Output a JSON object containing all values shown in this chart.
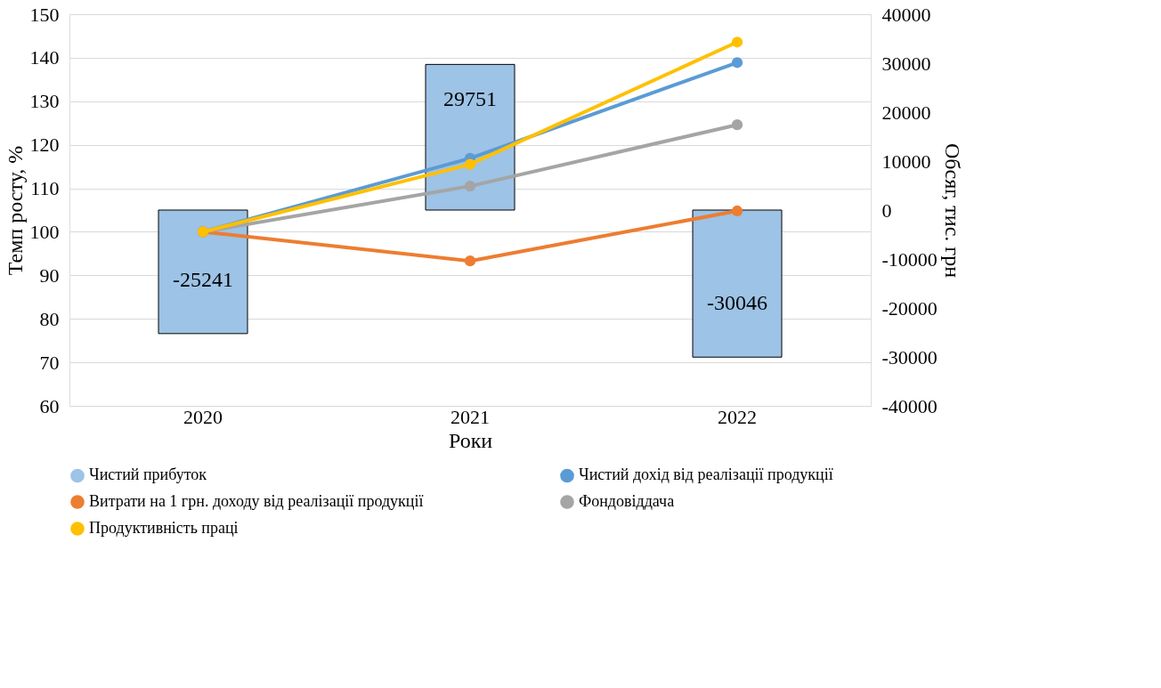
{
  "chart_data": {
    "type": "line",
    "xlabel": "Роки",
    "ylabel": "Темп росту, %",
    "y2label": "Обсяг, тис. грн",
    "categories": [
      "2020",
      "2021",
      "2022"
    ],
    "series": [
      {
        "name": "Чистий прибуток",
        "type": "bar",
        "axis": "y2",
        "color": "#9dc3e6",
        "values": [
          -25241,
          29751,
          -30046
        ],
        "value_labels": [
          "-25241",
          "29751",
          "-30046"
        ]
      },
      {
        "name": "Чистий дохід від реалізації продукції",
        "color": "#5b9bd5",
        "values": [
          100,
          116.9,
          138.9
        ]
      },
      {
        "name": "Витрати на 1 грн. доходу від реалізації продукції",
        "color": "#ed7d31",
        "values": [
          100,
          93.3,
          104.8
        ]
      },
      {
        "name": "Фондовіддача",
        "color": "#a5a5a5",
        "values": [
          100,
          110.5,
          124.6
        ]
      },
      {
        "name": "Продуктивність праці",
        "color": "#ffc000",
        "values": [
          100,
          115.5,
          143.6
        ]
      }
    ],
    "ylim": [
      60,
      150
    ],
    "yticks": [
      60,
      70,
      80,
      90,
      100,
      110,
      120,
      130,
      140,
      150
    ],
    "y2lim": [
      -40000,
      40000
    ],
    "y2ticks": [
      -40000,
      -30000,
      -20000,
      -10000,
      0,
      10000,
      20000,
      30000,
      40000
    ],
    "grid": "y",
    "legend": "bottom",
    "marker": "circle",
    "line_style": "solid"
  }
}
